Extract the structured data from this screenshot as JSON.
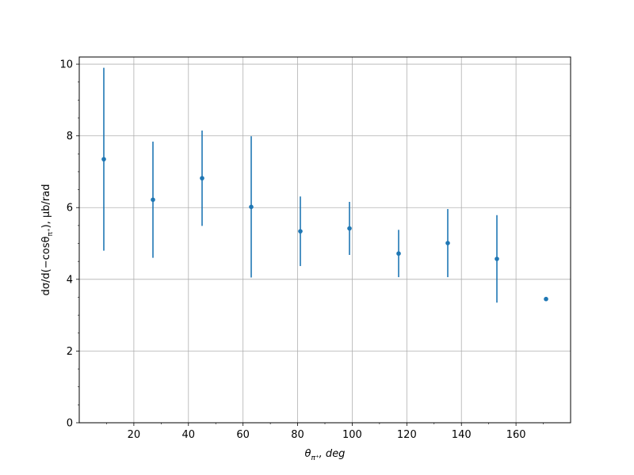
{
  "chart_data": {
    "type": "scatter",
    "title": "",
    "xlabel_main": "θ",
    "xlabel_sub": "π⁺",
    "xlabel_rest": ", deg",
    "ylabel_pre": "dσ/d(−cosθ",
    "ylabel_sub": "π⁺",
    "ylabel_post": "), μb/rad",
    "xlim": [
      0,
      180
    ],
    "ylim": [
      0,
      10.2
    ],
    "xticks": [
      "20",
      "40",
      "60",
      "80",
      "100",
      "120",
      "140",
      "160"
    ],
    "yticks": [
      "0",
      "2",
      "4",
      "6",
      "8",
      "10"
    ],
    "grid": true,
    "color": "#1f77b4",
    "points": [
      {
        "x": 9,
        "y": 7.35,
        "err": 2.55
      },
      {
        "x": 27,
        "y": 6.22,
        "err": 1.62
      },
      {
        "x": 45,
        "y": 6.82,
        "err": 1.33
      },
      {
        "x": 63,
        "y": 6.02,
        "err": 1.97
      },
      {
        "x": 81,
        "y": 5.34,
        "err": 0.97
      },
      {
        "x": 99,
        "y": 5.42,
        "err": 0.74
      },
      {
        "x": 117,
        "y": 4.72,
        "err": 0.66
      },
      {
        "x": 135,
        "y": 5.01,
        "err": 0.95
      },
      {
        "x": 153,
        "y": 4.57,
        "err": 1.22
      },
      {
        "x": 171,
        "y": 3.45,
        "err": 0
      }
    ]
  }
}
